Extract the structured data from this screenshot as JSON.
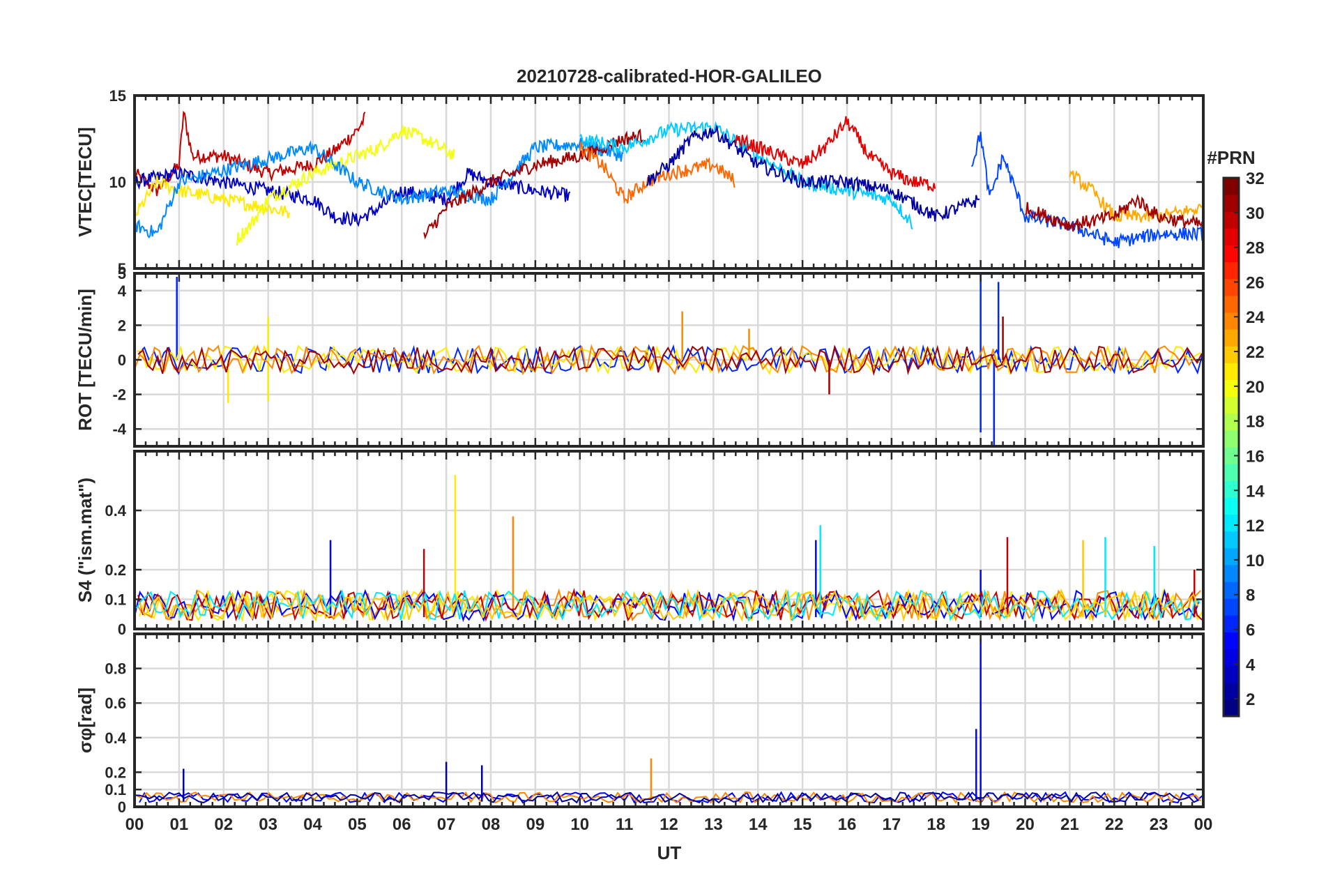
{
  "chart_data": {
    "type": "line",
    "title": "20210728-calibrated-HOR-GALILEO",
    "xlabel": "UT",
    "x_ticks": [
      "00",
      "01",
      "02",
      "03",
      "04",
      "05",
      "06",
      "07",
      "08",
      "09",
      "10",
      "11",
      "12",
      "13",
      "14",
      "15",
      "16",
      "17",
      "18",
      "19",
      "20",
      "21",
      "22",
      "23",
      "00"
    ],
    "xlim_hours": [
      0,
      24
    ],
    "grid": true,
    "colorbar": {
      "title": "#PRN",
      "range": [
        1,
        32
      ],
      "ticks": [
        "2",
        "4",
        "6",
        "8",
        "10",
        "12",
        "14",
        "16",
        "18",
        "20",
        "22",
        "24",
        "26",
        "28",
        "30",
        "32"
      ],
      "colormap": "jet"
    },
    "panels": [
      {
        "ylabel": "VTEC[TECU]",
        "ylim": [
          5,
          15
        ],
        "yticks": [
          "5",
          "10",
          "15"
        ],
        "series_summary": [
          {
            "prn": 30,
            "segments": [
              [
                0.0,
                10.5
              ],
              [
                0.5,
                9.5
              ],
              [
                1.0,
                11.0
              ],
              [
                1.1,
                14.0
              ],
              [
                1.3,
                11.5
              ],
              [
                2.0,
                11.5
              ],
              [
                3.0,
                10.5
              ],
              [
                4.0,
                11.0
              ],
              [
                4.5,
                11.8
              ],
              [
                5.0,
                13.0
              ],
              [
                5.2,
                13.8
              ]
            ]
          },
          {
            "prn": 3,
            "segments": [
              [
                0.0,
                10.0
              ],
              [
                1.0,
                10.5
              ],
              [
                2.0,
                10.0
              ],
              [
                3.0,
                9.5
              ],
              [
                4.0,
                9.0
              ],
              [
                4.5,
                8.0
              ],
              [
                5.0,
                7.8
              ],
              [
                5.5,
                8.5
              ],
              [
                6.0,
                9.5
              ],
              [
                7.0,
                9.0
              ],
              [
                7.5,
                10.5
              ],
              [
                8.0,
                10.0
              ],
              [
                9.0,
                9.5
              ],
              [
                9.8,
                9.2
              ]
            ]
          },
          {
            "prn": 21,
            "segments": [
              [
                0.0,
                8.0
              ],
              [
                0.5,
                10.0
              ],
              [
                1.0,
                9.5
              ],
              [
                2.0,
                9.0
              ],
              [
                3.0,
                8.5
              ],
              [
                3.5,
                8.2
              ]
            ]
          },
          {
            "prn": 20,
            "segments": [
              [
                2.3,
                6.7
              ],
              [
                2.6,
                7.5
              ],
              [
                3.0,
                9.0
              ],
              [
                4.0,
                10.5
              ],
              [
                5.0,
                11.5
              ],
              [
                5.5,
                12.0
              ],
              [
                6.0,
                13.0
              ],
              [
                6.5,
                12.5
              ],
              [
                7.0,
                11.8
              ],
              [
                7.2,
                11.5
              ]
            ]
          },
          {
            "prn": 9,
            "segments": [
              [
                0.0,
                7.5
              ],
              [
                0.5,
                7.0
              ],
              [
                1.0,
                10.0
              ],
              [
                4.0,
                12.0
              ],
              [
                5.0,
                10.0
              ],
              [
                6.0,
                9.0
              ],
              [
                7.0,
                9.5
              ],
              [
                8.0,
                9.0
              ],
              [
                9.0,
                12.0
              ],
              [
                10.0,
                12.2
              ],
              [
                11.0,
                11.5
              ]
            ]
          },
          {
            "prn": 31,
            "segments": [
              [
                6.5,
                6.8
              ],
              [
                7.0,
                8.5
              ],
              [
                8.0,
                10.0
              ],
              [
                9.0,
                11.0
              ],
              [
                10.0,
                11.5
              ],
              [
                11.0,
                12.5
              ],
              [
                11.5,
                12.7
              ]
            ]
          },
          {
            "prn": 25,
            "segments": [
              [
                10.0,
                12.0
              ],
              [
                10.5,
                11.0
              ],
              [
                11.0,
                9.0
              ],
              [
                11.5,
                10.0
              ],
              [
                12.0,
                10.5
              ],
              [
                13.0,
                11.0
              ],
              [
                13.5,
                10.0
              ]
            ]
          },
          {
            "prn": 11,
            "segments": [
              [
                10.0,
                12.5
              ],
              [
                11.0,
                12.0
              ],
              [
                12.0,
                13.0
              ],
              [
                13.0,
                13.2
              ],
              [
                14.0,
                11.5
              ],
              [
                15.0,
                10.0
              ],
              [
                16.0,
                9.5
              ],
              [
                17.0,
                9.0
              ],
              [
                17.5,
                7.5
              ]
            ]
          },
          {
            "prn": 2,
            "segments": [
              [
                11.5,
                10.0
              ],
              [
                12.0,
                11.0
              ],
              [
                12.5,
                12.5
              ],
              [
                13.0,
                13.0
              ],
              [
                14.0,
                11.0
              ],
              [
                15.0,
                10.0
              ],
              [
                16.0,
                10.0
              ],
              [
                17.0,
                9.5
              ],
              [
                18.0,
                8.0
              ],
              [
                19.0,
                9.0
              ]
            ]
          },
          {
            "prn": 29,
            "segments": [
              [
                13.5,
                12.5
              ],
              [
                14.0,
                12.0
              ],
              [
                15.0,
                11.0
              ],
              [
                15.5,
                12.0
              ],
              [
                16.0,
                13.5
              ],
              [
                16.5,
                11.5
              ],
              [
                17.0,
                10.5
              ],
              [
                17.5,
                10.0
              ],
              [
                18.0,
                9.8
              ]
            ]
          },
          {
            "prn": 7,
            "segments": [
              [
                18.8,
                11.0
              ],
              [
                19.0,
                12.8
              ],
              [
                19.2,
                9.0
              ],
              [
                19.5,
                11.5
              ],
              [
                20.0,
                8.0
              ],
              [
                21.0,
                7.5
              ],
              [
                22.0,
                6.5
              ],
              [
                23.0,
                7.0
              ],
              [
                24.0,
                7.0
              ]
            ]
          },
          {
            "prn": 23,
            "segments": [
              [
                21.0,
                10.5
              ],
              [
                21.5,
                9.5
              ],
              [
                22.0,
                8.0
              ],
              [
                23.0,
                8.0
              ],
              [
                24.0,
                8.5
              ]
            ]
          },
          {
            "prn": 31,
            "segments": [
              [
                20.0,
                8.5
              ],
              [
                21.0,
                7.5
              ],
              [
                22.0,
                8.0
              ],
              [
                22.5,
                9.0
              ],
              [
                23.0,
                8.0
              ],
              [
                24.0,
                7.5
              ]
            ]
          }
        ]
      },
      {
        "ylabel": "ROT [TECU/min]",
        "ylim": [
          -5,
          5
        ],
        "yticks": [
          "-4",
          "-2",
          "0",
          "2",
          "4",
          "5"
        ],
        "series_summary": [
          {
            "prn": 6,
            "spikes": [
              [
                0.95,
                4.8
              ],
              [
                19.0,
                5.0
              ],
              [
                19.0,
                -4.2
              ],
              [
                19.3,
                -5.0
              ],
              [
                19.4,
                4.5
              ]
            ]
          },
          {
            "prn": 21,
            "spikes": [
              [
                2.1,
                -2.5
              ],
              [
                3.0,
                2.5
              ],
              [
                3.0,
                -2.4
              ]
            ]
          },
          {
            "prn": 24,
            "spikes": [
              [
                12.3,
                2.8
              ],
              [
                13.8,
                1.8
              ]
            ]
          },
          {
            "prn": 31,
            "spikes": [
              [
                15.6,
                -2.0
              ],
              [
                19.5,
                2.5
              ]
            ]
          }
        ]
      },
      {
        "ylabel": "S4 (\"ism.mat\")",
        "ylim": [
          0,
          0.6
        ],
        "yticks": [
          "0",
          "0.1",
          "0.2",
          "0.4"
        ],
        "series_summary": [
          {
            "prn": 21,
            "spikes": [
              [
                7.2,
                0.52
              ]
            ]
          },
          {
            "prn": 24,
            "spikes": [
              [
                8.5,
                0.38
              ]
            ]
          },
          {
            "prn": 5,
            "spikes": [
              [
                4.4,
                0.3
              ],
              [
                15.3,
                0.3
              ],
              [
                19.0,
                0.2
              ]
            ]
          },
          {
            "prn": 30,
            "spikes": [
              [
                6.5,
                0.27
              ],
              [
                19.6,
                0.31
              ],
              [
                23.8,
                0.2
              ]
            ]
          },
          {
            "prn": 12,
            "spikes": [
              [
                15.4,
                0.35
              ],
              [
                21.8,
                0.31
              ],
              [
                22.9,
                0.28
              ]
            ]
          },
          {
            "prn": 22,
            "spikes": [
              [
                21.3,
                0.3
              ]
            ]
          }
        ]
      },
      {
        "ylabel": "σφ[rad]",
        "ylim": [
          0,
          1.0
        ],
        "yticks": [
          "0",
          "0.1",
          "0.2",
          "0.4",
          "0.6",
          "0.8"
        ],
        "series_summary": [
          {
            "prn": 5,
            "spikes": [
              [
                18.9,
                0.45
              ],
              [
                19.0,
                0.97
              ]
            ]
          },
          {
            "prn": 24,
            "spikes": [
              [
                11.6,
                0.28
              ]
            ]
          },
          {
            "prn": 2,
            "spikes": [
              [
                1.1,
                0.22
              ],
              [
                7.0,
                0.26
              ],
              [
                7.8,
                0.24
              ]
            ]
          }
        ]
      }
    ]
  }
}
